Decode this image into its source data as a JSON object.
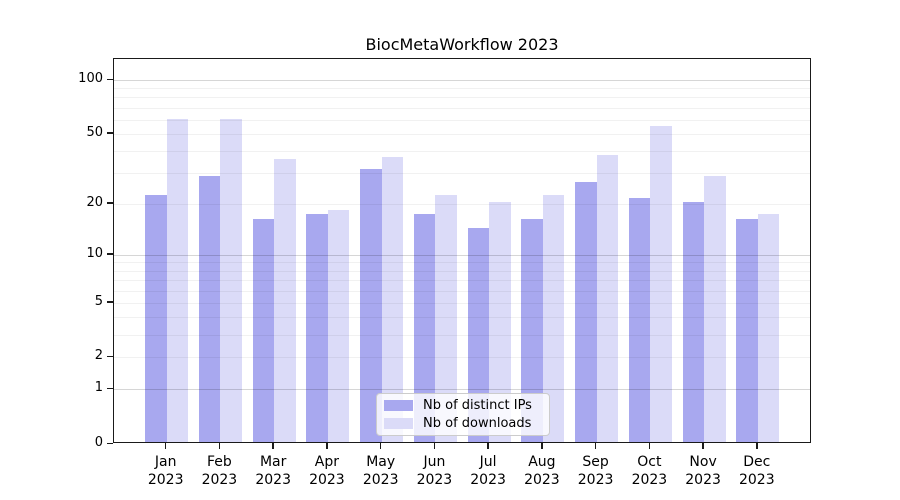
{
  "chart_data": {
    "type": "bar",
    "title": "BiocMetaWorkflow 2023",
    "yscale": "log1p",
    "grid": true,
    "legend_position": "lower center",
    "x_tick_months": [
      "Jan",
      "Feb",
      "Mar",
      "Apr",
      "May",
      "Jun",
      "Jul",
      "Aug",
      "Sep",
      "Oct",
      "Nov",
      "Dec"
    ],
    "x_tick_year": "2023",
    "categories": [
      "Jan 2023",
      "Feb 2023",
      "Mar 2023",
      "Apr 2023",
      "May 2023",
      "Jun 2023",
      "Jul 2023",
      "Aug 2023",
      "Sep 2023",
      "Oct 2023",
      "Nov 2023",
      "Dec 2023"
    ],
    "y_ticks": [
      0,
      1,
      2,
      5,
      10,
      20,
      50,
      100
    ],
    "y_major_gridlines": [
      1,
      10,
      100
    ],
    "y_minor_gridlines": [
      2,
      3,
      4,
      5,
      6,
      7,
      8,
      9,
      20,
      30,
      40,
      50,
      60,
      70,
      80,
      90
    ],
    "ylim": [
      0,
      115
    ],
    "series": [
      {
        "name": "Nb of distinct IPs",
        "color": "#a8a8ef",
        "values": [
          22,
          28,
          16,
          17,
          31,
          17,
          14,
          16,
          26,
          21,
          20,
          16
        ]
      },
      {
        "name": "Nb of downloads",
        "color": "#dbdbf8",
        "values": [
          59,
          59,
          35,
          18,
          36,
          22,
          20,
          22,
          37,
          54,
          28,
          17
        ]
      }
    ]
  }
}
